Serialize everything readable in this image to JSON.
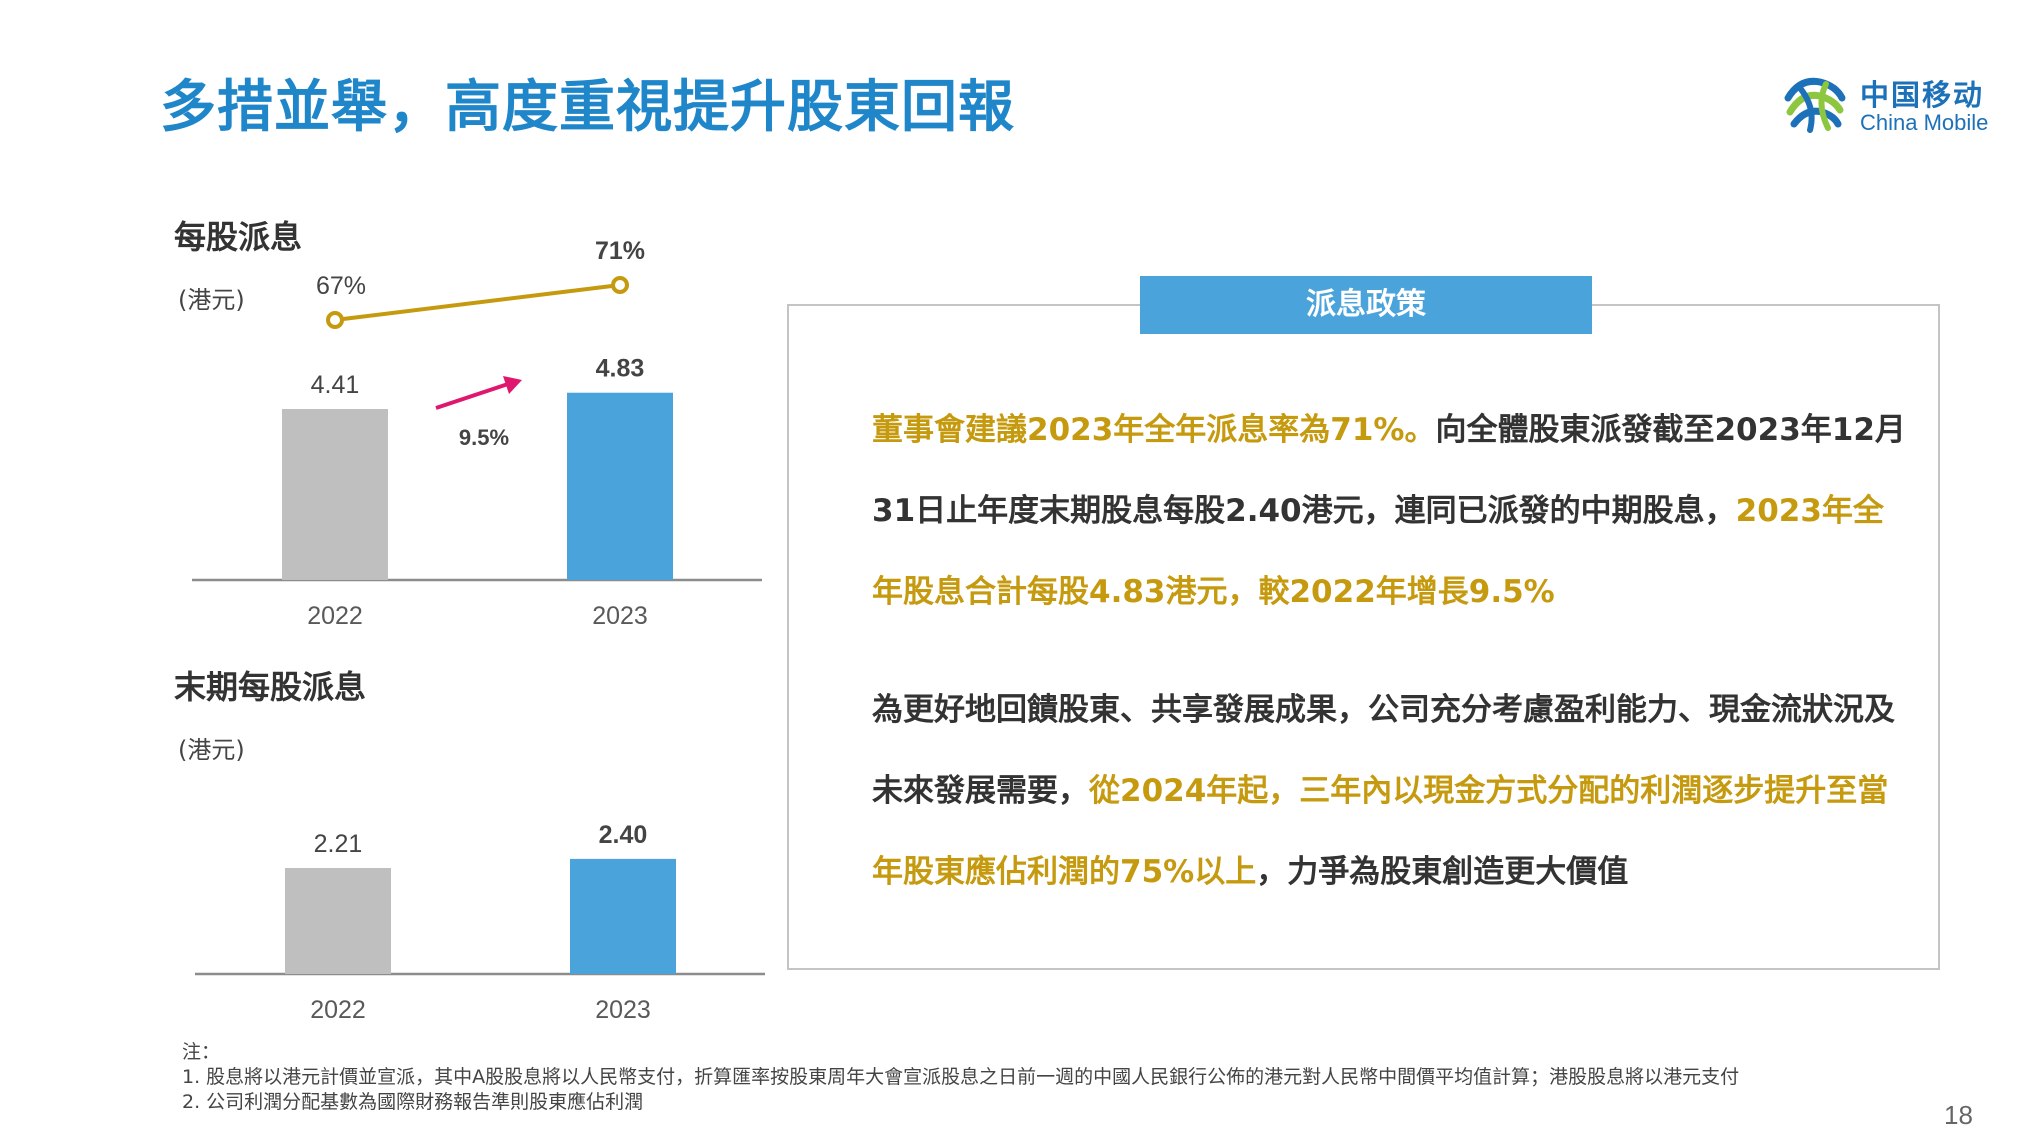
{
  "header": {
    "title": "多措並舉，高度重視提升股東回報"
  },
  "logo": {
    "cn": "中国移动",
    "en": "China Mobile"
  },
  "colors": {
    "title_blue": "#1f86c9",
    "bar_gray": "#bfbfbf",
    "bar_blue": "#4ba3db",
    "line_gold": "#c69a0f",
    "arrow_pink": "#e0176e"
  },
  "chart_data": [
    {
      "type": "bar",
      "title": "每股派息",
      "unit": "(港元)",
      "categories": [
        "2022",
        "2023"
      ],
      "values": [
        4.41,
        4.83
      ],
      "value_labels": [
        "4.41",
        "4.83"
      ],
      "growth_label": "9.5%",
      "payout_line": {
        "type": "line",
        "values": [
          67,
          71
        ],
        "labels": [
          "67%",
          "71%"
        ]
      }
    },
    {
      "type": "bar",
      "title": "末期每股派息",
      "unit": "(港元)",
      "categories": [
        "2022",
        "2023"
      ],
      "values": [
        2.21,
        2.4
      ],
      "value_labels": [
        "2.21",
        "2.40"
      ]
    }
  ],
  "policy": {
    "tag": "派息政策",
    "p1": [
      {
        "text": "董事會建議2023年全年派息率為71%。",
        "hl": true
      },
      {
        "text": "向全體股東派發截至2023年12月31日止年度末期股息每股2.40港元，連同已派發的中期股息，",
        "hl": false
      },
      {
        "text": "2023年全年股息合計每股4.83港元，較2022年增長9.5%",
        "hl": true
      }
    ],
    "p2": [
      {
        "text": "為更好地回饋股東、共享發展成果，公司充分考慮盈利能力、現金流狀況及未來發展需要，",
        "hl": false
      },
      {
        "text": "從2024年起，三年內以現金方式分配的利潤逐步提升至當年股東應佔利潤的75%以上",
        "hl": true
      },
      {
        "text": "，力爭為股東創造更大價值",
        "hl": false
      }
    ]
  },
  "notes": {
    "header": "注：",
    "n1": "1. 股息將以港元計價並宣派，其中A股股息將以人民幣支付，折算匯率按股東周年大會宣派股息之日前一週的中國人民銀行公佈的港元對人民幣中間價平均值計算；港股股息將以港元支付",
    "n2": "2. 公司利潤分配基數為國際財務報告準則股東應佔利潤"
  },
  "page": {
    "number": "18"
  }
}
